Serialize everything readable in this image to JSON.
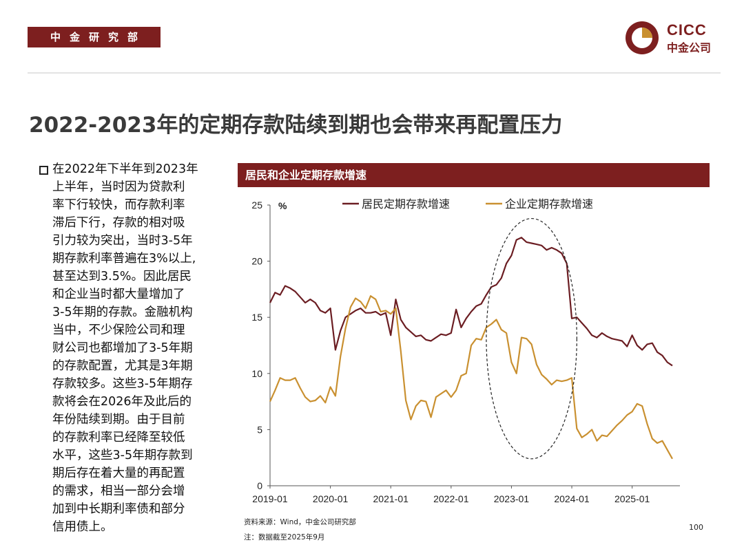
{
  "header": {
    "department": "中金研究部",
    "logo_en": "CICC",
    "logo_cn": "中金公司"
  },
  "title": "2022-2023年的定期存款陆续到期也会带来再配置压力",
  "body_lines": [
    "在2022年下半年到2023年",
    "上半年，当时因为贷款利",
    "率下行较快，而存款利率",
    "滞后下行，存款的相对吸",
    "引力较为突出，当时3-5年",
    "期存款利率普遍在3%以上,",
    "甚至达到3.5%。因此居民",
    "和企业当时都大量增加了",
    "3-5年期的存款。金融机构",
    "当中，不少保险公司和理",
    "财公司也都增加了3-5年期",
    "的存款配置，尤其是3年期",
    "存款较多。这些3-5年期存",
    "款将会在2026年及此后的",
    "年份陆续到期。由于目前",
    "的存款利率已经降至较低",
    "水平，这些3-5年期存款到",
    "期后存在着大量的再配置",
    "的需求，相当一部分会增",
    "加到中长期利率债和部分",
    "信用债上。"
  ],
  "chart_header": "居民和企业定期存款增速",
  "chart_data": {
    "type": "line",
    "title": "居民和企业定期存款增速",
    "unit": "%",
    "ylim": [
      0,
      25
    ],
    "yticks": [
      0,
      5,
      10,
      15,
      20,
      25
    ],
    "xticks": [
      "2019-01",
      "2020-01",
      "2021-01",
      "2022-01",
      "2023-01",
      "2024-01",
      "2025-01"
    ],
    "xrange": [
      "2019-01",
      "2025-09"
    ],
    "legend_position": "top",
    "grid": false,
    "series": [
      {
        "name": "居民定期存款增速",
        "color": "#6b1d22",
        "points": [
          [
            "2019-01",
            16.3
          ],
          [
            "2019-02",
            17.2
          ],
          [
            "2019-03",
            17.0
          ],
          [
            "2019-04",
            17.8
          ],
          [
            "2019-05",
            17.6
          ],
          [
            "2019-06",
            17.3
          ],
          [
            "2019-07",
            16.8
          ],
          [
            "2019-08",
            16.3
          ],
          [
            "2019-09",
            16.6
          ],
          [
            "2019-10",
            16.3
          ],
          [
            "2019-11",
            15.6
          ],
          [
            "2019-12",
            15.4
          ],
          [
            "2020-01",
            15.8
          ],
          [
            "2020-02",
            12.1
          ],
          [
            "2020-03",
            13.8
          ],
          [
            "2020-04",
            15.0
          ],
          [
            "2020-05",
            15.3
          ],
          [
            "2020-06",
            15.6
          ],
          [
            "2020-07",
            15.8
          ],
          [
            "2020-08",
            15.4
          ],
          [
            "2020-09",
            15.4
          ],
          [
            "2020-10",
            15.5
          ],
          [
            "2020-11",
            15.2
          ],
          [
            "2020-12",
            15.4
          ],
          [
            "2021-01",
            13.4
          ],
          [
            "2021-02",
            16.6
          ],
          [
            "2021-03",
            14.8
          ],
          [
            "2021-04",
            14.1
          ],
          [
            "2021-05",
            13.7
          ],
          [
            "2021-06",
            13.3
          ],
          [
            "2021-07",
            13.4
          ],
          [
            "2021-08",
            13.0
          ],
          [
            "2021-09",
            12.9
          ],
          [
            "2021-10",
            13.2
          ],
          [
            "2021-11",
            13.5
          ],
          [
            "2021-12",
            13.4
          ],
          [
            "2022-01",
            13.6
          ],
          [
            "2022-02",
            15.7
          ],
          [
            "2022-03",
            14.1
          ],
          [
            "2022-04",
            14.9
          ],
          [
            "2022-05",
            15.5
          ],
          [
            "2022-06",
            16.0
          ],
          [
            "2022-07",
            16.2
          ],
          [
            "2022-08",
            17.0
          ],
          [
            "2022-09",
            17.7
          ],
          [
            "2022-10",
            17.9
          ],
          [
            "2022-11",
            18.5
          ],
          [
            "2022-12",
            19.8
          ],
          [
            "2023-01",
            20.5
          ],
          [
            "2023-02",
            21.9
          ],
          [
            "2023-03",
            22.1
          ],
          [
            "2023-04",
            21.7
          ],
          [
            "2023-05",
            21.6
          ],
          [
            "2023-06",
            21.5
          ],
          [
            "2023-07",
            21.4
          ],
          [
            "2023-08",
            21.0
          ],
          [
            "2023-09",
            21.2
          ],
          [
            "2023-10",
            21.0
          ],
          [
            "2023-11",
            20.7
          ],
          [
            "2023-12",
            19.8
          ],
          [
            "2024-01",
            14.9
          ],
          [
            "2024-02",
            15.0
          ],
          [
            "2024-03",
            14.5
          ],
          [
            "2024-04",
            14.0
          ],
          [
            "2024-05",
            13.4
          ],
          [
            "2024-06",
            13.2
          ],
          [
            "2024-07",
            13.6
          ],
          [
            "2024-08",
            13.3
          ],
          [
            "2024-09",
            13.1
          ],
          [
            "2024-10",
            13.0
          ],
          [
            "2024-11",
            12.9
          ],
          [
            "2024-12",
            12.4
          ],
          [
            "2025-01",
            13.4
          ],
          [
            "2025-02",
            12.5
          ],
          [
            "2025-03",
            12.1
          ],
          [
            "2025-04",
            12.6
          ],
          [
            "2025-05",
            12.7
          ],
          [
            "2025-06",
            11.9
          ],
          [
            "2025-07",
            11.6
          ],
          [
            "2025-08",
            11.0
          ],
          [
            "2025-09",
            10.7
          ]
        ]
      },
      {
        "name": "企业定期存款增速",
        "color": "#c99030",
        "points": [
          [
            "2019-01",
            7.5
          ],
          [
            "2019-02",
            8.5
          ],
          [
            "2019-03",
            9.6
          ],
          [
            "2019-04",
            9.4
          ],
          [
            "2019-05",
            9.4
          ],
          [
            "2019-06",
            9.6
          ],
          [
            "2019-07",
            8.7
          ],
          [
            "2019-08",
            7.9
          ],
          [
            "2019-09",
            7.5
          ],
          [
            "2019-10",
            7.6
          ],
          [
            "2019-11",
            8.0
          ],
          [
            "2019-12",
            7.4
          ],
          [
            "2020-01",
            8.8
          ],
          [
            "2020-02",
            8.0
          ],
          [
            "2020-03",
            11.5
          ],
          [
            "2020-04",
            14.0
          ],
          [
            "2020-05",
            15.9
          ],
          [
            "2020-06",
            16.7
          ],
          [
            "2020-07",
            16.4
          ],
          [
            "2020-08",
            15.8
          ],
          [
            "2020-09",
            16.9
          ],
          [
            "2020-10",
            16.6
          ],
          [
            "2020-11",
            15.5
          ],
          [
            "2020-12",
            15.6
          ],
          [
            "2021-01",
            15.3
          ],
          [
            "2021-02",
            15.8
          ],
          [
            "2021-03",
            12.0
          ],
          [
            "2021-04",
            7.6
          ],
          [
            "2021-05",
            5.9
          ],
          [
            "2021-06",
            7.1
          ],
          [
            "2021-07",
            7.6
          ],
          [
            "2021-08",
            7.5
          ],
          [
            "2021-09",
            6.1
          ],
          [
            "2021-10",
            7.9
          ],
          [
            "2021-11",
            8.2
          ],
          [
            "2021-12",
            8.5
          ],
          [
            "2022-01",
            7.9
          ],
          [
            "2022-02",
            8.5
          ],
          [
            "2022-03",
            9.8
          ],
          [
            "2022-04",
            10.0
          ],
          [
            "2022-05",
            12.5
          ],
          [
            "2022-06",
            13.1
          ],
          [
            "2022-07",
            13.0
          ],
          [
            "2022-08",
            14.1
          ],
          [
            "2022-09",
            14.4
          ],
          [
            "2022-10",
            14.8
          ],
          [
            "2022-11",
            13.9
          ],
          [
            "2022-12",
            13.6
          ],
          [
            "2023-01",
            11.0
          ],
          [
            "2023-02",
            10.0
          ],
          [
            "2023-03",
            13.2
          ],
          [
            "2023-04",
            13.1
          ],
          [
            "2023-05",
            12.6
          ],
          [
            "2023-06",
            10.8
          ],
          [
            "2023-07",
            9.9
          ],
          [
            "2023-08",
            9.5
          ],
          [
            "2023-09",
            9.0
          ],
          [
            "2023-10",
            9.4
          ],
          [
            "2023-11",
            9.3
          ],
          [
            "2023-12",
            9.4
          ],
          [
            "2024-01",
            9.6
          ],
          [
            "2024-02",
            5.1
          ],
          [
            "2024-03",
            4.3
          ],
          [
            "2024-04",
            4.6
          ],
          [
            "2024-05",
            5.0
          ],
          [
            "2024-06",
            4.0
          ],
          [
            "2024-07",
            4.5
          ],
          [
            "2024-08",
            4.4
          ],
          [
            "2024-09",
            4.9
          ],
          [
            "2024-10",
            5.4
          ],
          [
            "2024-11",
            5.8
          ],
          [
            "2024-12",
            6.3
          ],
          [
            "2025-01",
            6.6
          ],
          [
            "2025-02",
            7.3
          ],
          [
            "2025-03",
            7.1
          ],
          [
            "2025-04",
            5.5
          ],
          [
            "2025-05",
            4.2
          ],
          [
            "2025-06",
            3.8
          ],
          [
            "2025-07",
            4.0
          ],
          [
            "2025-08",
            3.2
          ],
          [
            "2025-09",
            2.4
          ]
        ]
      }
    ],
    "annotation": {
      "type": "dashed-ellipse",
      "x_center": "2023-05",
      "y_center": 13.1,
      "x_halfspan_months": 9,
      "y_halfspan": 10.7
    }
  },
  "notes": {
    "source": "资料来源：Wind，中金公司研究部",
    "remark": "注：数据截至2025年9月"
  },
  "page_number": "100"
}
